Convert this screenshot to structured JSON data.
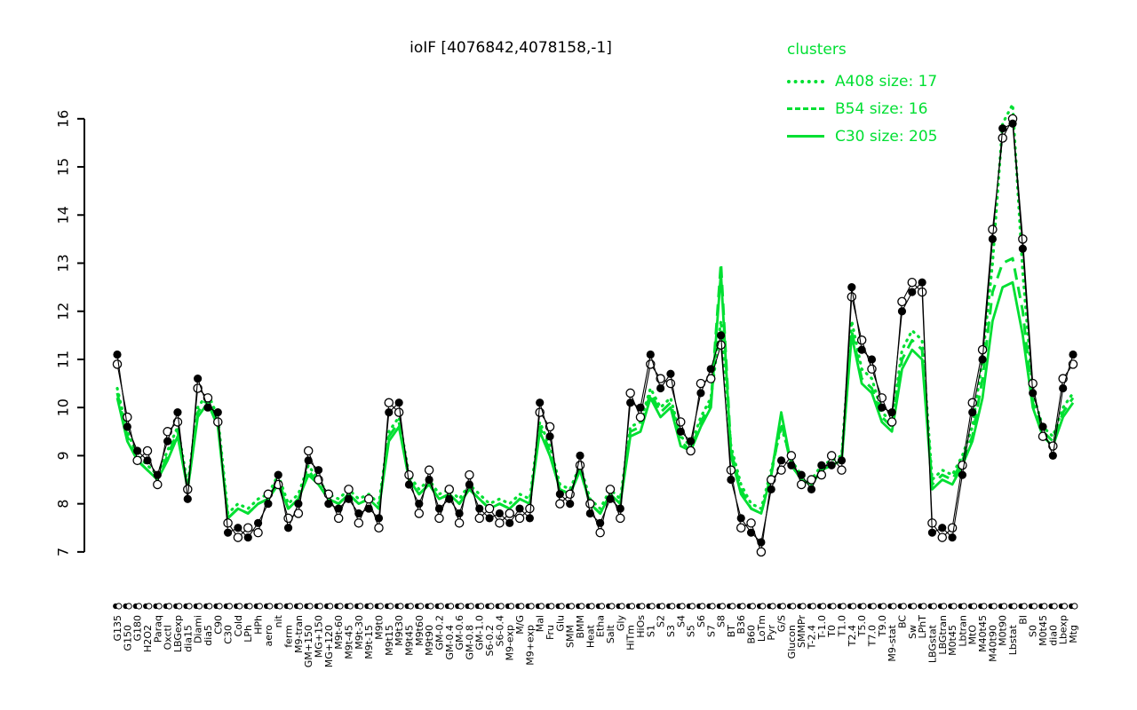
{
  "title": "ioIF [4076842,4078158,-1]",
  "legend": {
    "heading": "clusters",
    "items": [
      {
        "label": "A408 size: 17",
        "style": "dotted"
      },
      {
        "label": "B54 size: 16",
        "style": "dashed"
      },
      {
        "label": "C30 size: 205",
        "style": "solid"
      }
    ]
  },
  "palette": {
    "green": "#00df32",
    "black": "#000000",
    "background": "#ffffff"
  },
  "chart_data": {
    "type": "line",
    "title": "ioIF [4076842,4078158,-1]",
    "xlabel": "",
    "ylabel": "",
    "ylim": [
      7,
      16
    ],
    "yticks": [
      7,
      8,
      9,
      10,
      11,
      12,
      13,
      14,
      15,
      16
    ],
    "grid": false,
    "legend_position": "top-right",
    "categories": [
      "G135",
      "G150",
      "G180",
      "H2O2",
      "Paraq",
      "Oxctl",
      "LBGexp",
      "dia15",
      "Diami",
      "dia5",
      "C90",
      "C30",
      "Cold",
      "LPh",
      "HPh",
      "aero",
      "nit",
      "ferm",
      "M9-tran",
      "GM+150",
      "MG+150",
      "MG+120",
      "M9t-60",
      "M9t-45",
      "M9t-30",
      "M9t-15",
      "M9t0",
      "M9t15",
      "M9t30",
      "M9t45",
      "M9t60",
      "M9t90",
      "GM-0.2",
      "GM-0.4",
      "GM-0.6",
      "GM-0.8",
      "GM-1.0",
      "S6-0.2",
      "S6-0.4",
      "M9-exp",
      "M/G",
      "M9+exp",
      "Mal",
      "Fru",
      "Glu",
      "SMM",
      "BMM",
      "Heat",
      "Etha",
      "Salt",
      "Gly",
      "HiTm",
      "HiOs",
      "S1",
      "S2",
      "S3",
      "S4",
      "S5",
      "S6",
      "S7",
      "S8",
      "BT",
      "B36",
      "B60",
      "LoTm",
      "Pyr",
      "G/S",
      "Glucon",
      "SMMPr",
      "T-2.4",
      "T-1.0",
      "T0",
      "T1.0",
      "T2.4",
      "T5.0",
      "T7.0",
      "T9.0",
      "M9-stat",
      "BC",
      "Sw",
      "LPhT",
      "LBGstat",
      "LBGtran",
      "M0t45",
      "Lbtran",
      "MtO",
      "M40t45",
      "M40t90",
      "M0t90",
      "Lbstat",
      "BI",
      "S0",
      "M0t45",
      "dia0",
      "Lbexp",
      "Mtg"
    ],
    "series": [
      {
        "name": "A408",
        "color": "#00df32",
        "line": "dotted",
        "marker": "none",
        "values": [
          10.4,
          9.5,
          9.0,
          8.8,
          8.6,
          9.1,
          9.6,
          8.4,
          10.0,
          10.3,
          9.8,
          7.8,
          8.0,
          7.9,
          8.1,
          8.2,
          8.6,
          8.0,
          8.2,
          8.8,
          8.5,
          8.2,
          8.1,
          8.3,
          8.1,
          8.2,
          8.0,
          9.5,
          9.8,
          8.6,
          8.3,
          8.5,
          8.2,
          8.3,
          8.1,
          8.4,
          8.2,
          8.0,
          8.1,
          8.0,
          8.2,
          8.1,
          9.7,
          9.2,
          8.4,
          8.3,
          8.8,
          8.1,
          7.9,
          8.3,
          8.1,
          9.6,
          9.7,
          10.4,
          10.0,
          10.2,
          9.4,
          9.2,
          9.8,
          10.2,
          11.8,
          9.2,
          8.4,
          8.0,
          7.9,
          8.7,
          9.6,
          8.9,
          8.6,
          8.5,
          8.8,
          8.9,
          9.0,
          11.8,
          10.8,
          10.6,
          9.9,
          9.7,
          11.2,
          11.6,
          11.4,
          8.5,
          8.7,
          8.6,
          9.0,
          9.6,
          11.0,
          13.0,
          15.9,
          16.3,
          12.8,
          10.3,
          9.6,
          9.4,
          10.0,
          10.3
        ]
      },
      {
        "name": "B54",
        "color": "#00df32",
        "line": "dashed",
        "marker": "none",
        "values": [
          10.3,
          9.4,
          8.9,
          8.7,
          8.5,
          9.0,
          9.5,
          8.3,
          9.9,
          10.2,
          9.7,
          7.7,
          7.9,
          7.8,
          8.0,
          8.1,
          8.5,
          7.9,
          8.1,
          8.7,
          8.4,
          8.1,
          8.0,
          8.2,
          8.0,
          8.1,
          7.9,
          9.4,
          9.7,
          8.5,
          8.2,
          8.4,
          8.1,
          8.2,
          8.0,
          8.3,
          8.1,
          7.9,
          8.0,
          7.9,
          8.1,
          8.0,
          9.6,
          9.1,
          8.3,
          8.2,
          8.7,
          8.0,
          7.8,
          8.2,
          8.0,
          9.5,
          9.6,
          10.3,
          9.9,
          10.1,
          9.3,
          9.1,
          9.7,
          10.1,
          13.0,
          9.1,
          8.3,
          7.9,
          7.8,
          8.6,
          9.7,
          8.8,
          8.5,
          8.4,
          8.7,
          8.8,
          8.9,
          11.6,
          10.6,
          10.4,
          9.8,
          9.6,
          11.0,
          11.4,
          11.2,
          8.4,
          8.6,
          8.5,
          8.9,
          9.4,
          10.6,
          12.4,
          13.0,
          13.1,
          12.0,
          10.1,
          9.5,
          9.3,
          9.9,
          10.2
        ]
      },
      {
        "name": "C30",
        "color": "#00df32",
        "line": "solid",
        "marker": "none",
        "values": [
          10.2,
          9.3,
          8.9,
          8.7,
          8.5,
          8.9,
          9.4,
          8.3,
          9.8,
          10.1,
          9.6,
          7.7,
          7.9,
          7.8,
          8.0,
          8.1,
          8.4,
          7.9,
          8.1,
          8.6,
          8.4,
          8.1,
          8.0,
          8.2,
          8.0,
          8.1,
          7.9,
          9.3,
          9.6,
          8.5,
          8.2,
          8.4,
          8.1,
          8.2,
          8.0,
          8.3,
          8.1,
          7.9,
          8.0,
          7.9,
          8.1,
          8.0,
          9.5,
          9.0,
          8.3,
          8.2,
          8.7,
          8.0,
          7.8,
          8.2,
          8.0,
          9.4,
          9.5,
          10.2,
          9.8,
          10.0,
          9.2,
          9.1,
          9.6,
          10.0,
          12.8,
          9.0,
          8.2,
          7.9,
          7.8,
          8.6,
          9.9,
          8.8,
          8.5,
          8.4,
          8.7,
          8.8,
          8.9,
          11.5,
          10.5,
          10.3,
          9.7,
          9.5,
          10.8,
          11.2,
          11.0,
          8.3,
          8.5,
          8.4,
          8.8,
          9.3,
          10.2,
          11.8,
          12.5,
          12.6,
          11.5,
          10.0,
          9.4,
          9.2,
          9.8,
          10.1
        ]
      },
      {
        "name": "ioIF-open",
        "color": "#000000",
        "line": "solid-thin",
        "marker": "open-circle",
        "values": [
          10.9,
          9.8,
          8.9,
          9.1,
          8.4,
          9.5,
          9.7,
          8.3,
          10.4,
          10.2,
          9.7,
          7.6,
          7.3,
          7.5,
          7.4,
          8.2,
          8.4,
          7.7,
          7.8,
          9.1,
          8.5,
          8.2,
          7.7,
          8.3,
          7.6,
          8.1,
          7.5,
          10.1,
          9.9,
          8.6,
          7.8,
          8.7,
          7.7,
          8.3,
          7.6,
          8.6,
          7.7,
          7.9,
          7.6,
          7.8,
          7.7,
          7.9,
          9.9,
          9.6,
          8.0,
          8.2,
          8.8,
          8.0,
          7.4,
          8.3,
          7.7,
          10.3,
          9.8,
          10.9,
          10.6,
          10.5,
          9.7,
          9.1,
          10.5,
          10.6,
          11.3,
          8.7,
          7.5,
          7.6,
          7.0,
          8.5,
          8.7,
          9.0,
          8.4,
          8.5,
          8.6,
          9.0,
          8.7,
          12.3,
          11.4,
          10.8,
          10.2,
          9.7,
          12.2,
          12.6,
          12.4,
          7.6,
          7.3,
          7.5,
          8.8,
          10.1,
          11.2,
          13.7,
          15.6,
          16.0,
          13.5,
          10.5,
          9.4,
          9.2,
          10.6,
          10.9
        ]
      },
      {
        "name": "ioIF-filled",
        "color": "#000000",
        "line": "solid-thin",
        "marker": "filled-circle",
        "values": [
          11.1,
          9.6,
          9.1,
          8.9,
          8.6,
          9.3,
          9.9,
          8.1,
          10.6,
          10.0,
          9.9,
          7.4,
          7.5,
          7.3,
          7.6,
          8.0,
          8.6,
          7.5,
          8.0,
          8.9,
          8.7,
          8.0,
          7.9,
          8.1,
          7.8,
          7.9,
          7.7,
          9.9,
          10.1,
          8.4,
          8.0,
          8.5,
          7.9,
          8.1,
          7.8,
          8.4,
          7.9,
          7.7,
          7.8,
          7.6,
          7.9,
          7.7,
          10.1,
          9.4,
          8.2,
          8.0,
          9.0,
          7.8,
          7.6,
          8.1,
          7.9,
          10.1,
          10.0,
          11.1,
          10.4,
          10.7,
          9.5,
          9.3,
          10.3,
          10.8,
          11.5,
          8.5,
          7.7,
          7.4,
          7.2,
          8.3,
          8.9,
          8.8,
          8.6,
          8.3,
          8.8,
          8.8,
          8.9,
          12.5,
          11.2,
          11.0,
          10.0,
          9.9,
          12.0,
          12.4,
          12.6,
          7.4,
          7.5,
          7.3,
          8.6,
          9.9,
          11.0,
          13.5,
          15.8,
          15.9,
          13.3,
          10.3,
          9.6,
          9.0,
          10.4,
          11.1
        ]
      }
    ]
  }
}
